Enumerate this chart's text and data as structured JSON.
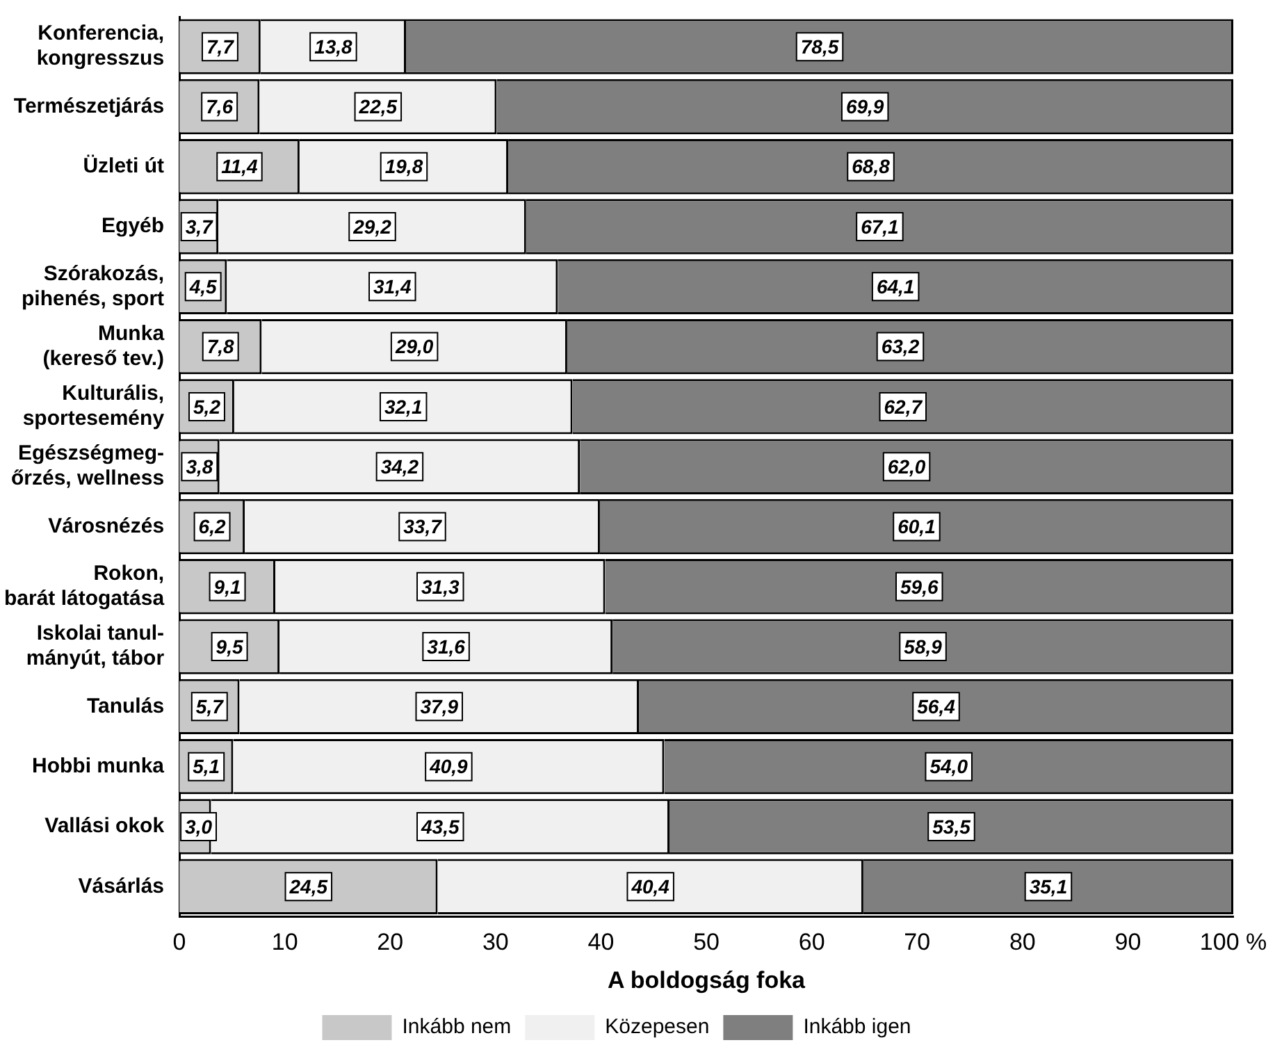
{
  "chart_data": {
    "type": "bar",
    "orientation": "horizontal",
    "stacked": true,
    "categories": [
      "Konferencia,\nkongresszus",
      "Természetjárás",
      "Üzleti út",
      "Egyéb",
      "Szórakozás,\npihenés, sport",
      "Munka\n(kereső tev.)",
      "Kulturális,\nsportesemény",
      "Egészségmeg-\nőrzés, wellness",
      "Városnézés",
      "Rokon,\nbarát látogatása",
      "Iskolai tanul-\nmányút, tábor",
      "Tanulás",
      "Hobbi munka",
      "Vallási okok",
      "Vásárlás"
    ],
    "series": [
      {
        "name": "Inkább nem",
        "color": "#c8c8c8",
        "values": [
          7.7,
          7.6,
          11.4,
          3.7,
          4.5,
          7.8,
          5.2,
          3.8,
          6.2,
          9.1,
          9.5,
          5.7,
          5.1,
          3.0,
          24.5
        ],
        "value_labels": [
          "7,7",
          "7,6",
          "11,4",
          "3,7",
          "4,5",
          "7,8",
          "5,2",
          "3,8",
          "6,2",
          "9,1",
          "9,5",
          "5,7",
          "5,1",
          "3,0",
          "24,5"
        ]
      },
      {
        "name": "Közepesen",
        "color": "#f0f0f0",
        "values": [
          13.8,
          22.5,
          19.8,
          29.2,
          31.4,
          29.0,
          32.1,
          34.2,
          33.7,
          31.3,
          31.6,
          37.9,
          40.9,
          43.5,
          40.4
        ],
        "value_labels": [
          "13,8",
          "22,5",
          "19,8",
          "29,2",
          "31,4",
          "29,0",
          "32,1",
          "34,2",
          "33,7",
          "31,3",
          "31,6",
          "37,9",
          "40,9",
          "43,5",
          "40,4"
        ]
      },
      {
        "name": "Inkább igen",
        "color": "#7f7f7f",
        "values": [
          78.5,
          69.9,
          68.8,
          67.1,
          64.1,
          63.2,
          62.7,
          62.0,
          60.1,
          59.6,
          58.9,
          56.4,
          54.0,
          53.5,
          35.1
        ],
        "value_labels": [
          "78,5",
          "69,9",
          "68,8",
          "67,1",
          "64,1",
          "63,2",
          "62,7",
          "62,0",
          "60,1",
          "59,6",
          "58,9",
          "56,4",
          "54,0",
          "53,5",
          "35,1"
        ]
      }
    ],
    "xlim": [
      0,
      100
    ],
    "xticks": [
      0,
      10,
      20,
      30,
      40,
      50,
      60,
      70,
      80,
      90,
      {
        "value": 100,
        "label": "100 %"
      }
    ],
    "xlabel": "A boldogság foka",
    "grid": false,
    "legend": "bottom"
  }
}
